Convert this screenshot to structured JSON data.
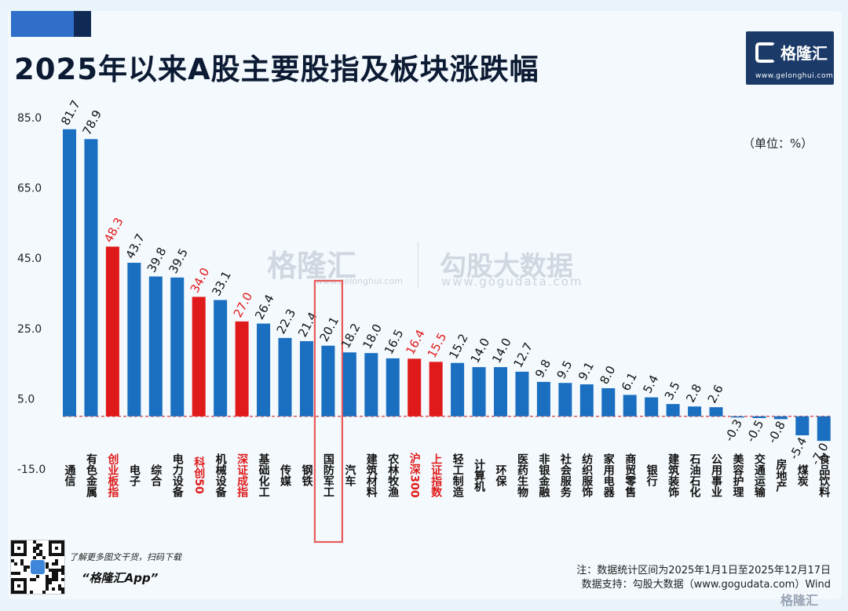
{
  "header": {
    "title": "2025年以来A股主要股指及板块涨跌幅",
    "unit": "（单位：%）"
  },
  "logo": {
    "name": "格隆汇",
    "url": "www.gelonghui.com"
  },
  "watermark": {
    "brand": "格隆汇",
    "brand_url": "www.gelonghui.com",
    "partner": "勾股大数据",
    "partner_url": "www.gogudata.com"
  },
  "footer": {
    "promo": "了解更多图文干货，扫码下载",
    "app": "“格隆汇App”",
    "note": "注：数据统计区间为2025年1月1日至2025年12月17日",
    "source": "数据支持：勾股大数据（www.gogudata.com）Wind",
    "corner": "格隆汇"
  },
  "colors": {
    "sector": "#1a6fc0",
    "index": "#e01a1a",
    "highlight": "#e85a5a",
    "zero_line": "#d94a4a"
  },
  "chart_data": {
    "type": "bar",
    "title": "2025年以来A股主要股指及板块涨跌幅",
    "ylabel": "（单位：%）",
    "yticks": [
      85.0,
      65.0,
      45.0,
      25.0,
      5.0,
      -15.0
    ],
    "ytick_labels": [
      "85.0",
      "65.0",
      "45.0",
      "25.0",
      "5.0",
      "-15.0"
    ],
    "ylim": [
      -15,
      85
    ],
    "grid": false,
    "highlighted": "国防军工",
    "categories": [
      "通信",
      "有色金属",
      "创业板指",
      "电子",
      "综合",
      "电力设备",
      "科创50",
      "机械设备",
      "深证成指",
      "基础化工",
      "传媒",
      "钢铁",
      "国防军工",
      "汽车",
      "建筑材料",
      "农林牧渔",
      "沪深300",
      "上证指数",
      "轻工制造",
      "计算机",
      "环保",
      "医药生物",
      "非银金融",
      "社会服务",
      "纺织服饰",
      "家用电器",
      "商贸零售",
      "银行",
      "建筑装饰",
      "石油石化",
      "公用事业",
      "美容护理",
      "交通运输",
      "房地产",
      "煤炭",
      "食品饮料"
    ],
    "values": [
      81.7,
      78.9,
      48.3,
      43.7,
      39.8,
      39.5,
      34.0,
      33.1,
      27.0,
      26.4,
      22.3,
      21.4,
      20.1,
      18.2,
      18.0,
      16.5,
      16.4,
      15.5,
      15.2,
      14.0,
      14.0,
      12.7,
      9.8,
      9.5,
      9.1,
      8.0,
      6.1,
      5.4,
      3.5,
      2.8,
      2.6,
      -0.3,
      -0.5,
      -0.8,
      -5.4,
      -7.0
    ],
    "value_labels": [
      "81.7",
      "78.9",
      "48.3",
      "43.7",
      "39.8",
      "39.5",
      "34.0",
      "33.1",
      "27.0",
      "26.4",
      "22.3",
      "21.4",
      "20.1",
      "18.2",
      "18.0",
      "16.5",
      "16.4",
      "15.5",
      "15.2",
      "14.0",
      "14.0",
      "12.7",
      "9.8",
      "9.5",
      "9.1",
      "8.0",
      "6.1",
      "5.4",
      "3.5",
      "2.8",
      "2.6",
      "-0.3",
      "-0.5",
      "-0.8",
      "-5.4",
      "-7.0"
    ],
    "is_index": [
      false,
      false,
      true,
      false,
      false,
      false,
      true,
      false,
      true,
      false,
      false,
      false,
      false,
      false,
      false,
      false,
      true,
      true,
      false,
      false,
      false,
      false,
      false,
      false,
      false,
      false,
      false,
      false,
      false,
      false,
      false,
      false,
      false,
      false,
      false,
      false
    ]
  }
}
